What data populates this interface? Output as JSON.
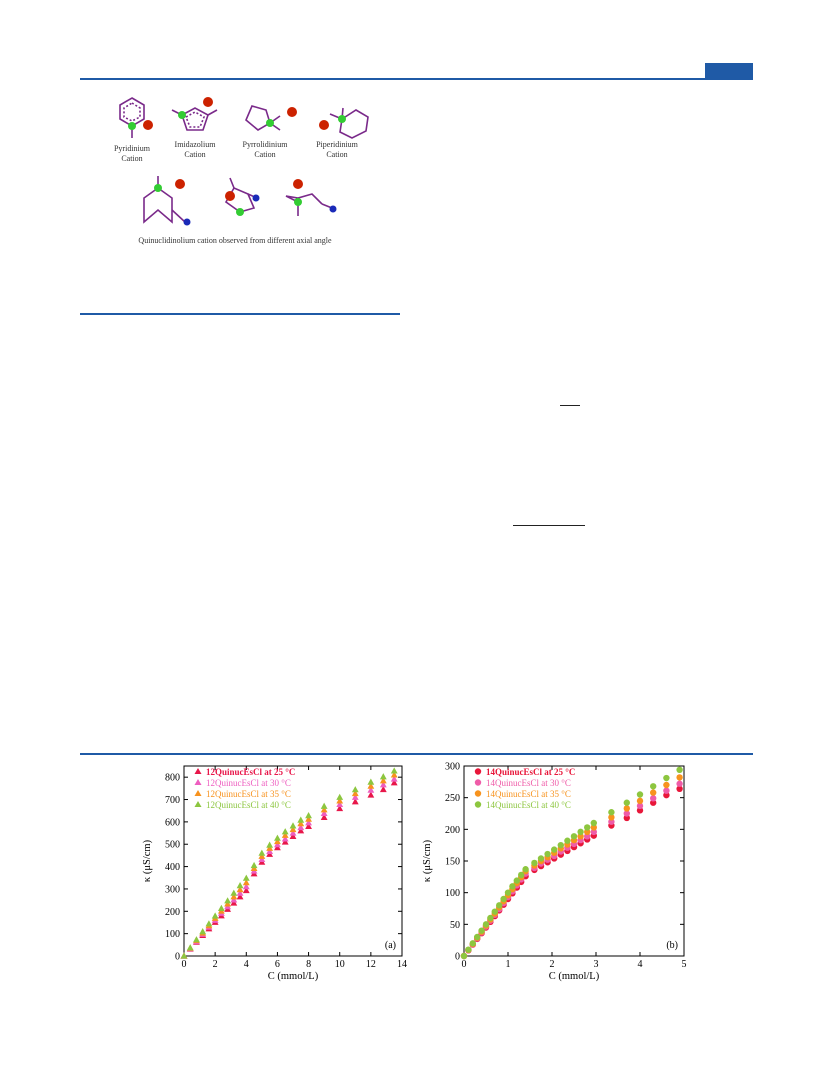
{
  "structures": {
    "labels": [
      {
        "text": "Pyridinium"
      },
      {
        "text": "Cation"
      },
      {
        "text": "Imidazolium"
      },
      {
        "text": "Cation"
      },
      {
        "text": "Pyrrolidinium"
      },
      {
        "text": "Cation"
      },
      {
        "text": "Piperidinium"
      },
      {
        "text": "Cation"
      }
    ],
    "caption": "Quinuclidinolium cation observed from different axial angle",
    "colors": {
      "bond": "#7a2a8a",
      "nitrogen": "#33cc33",
      "chloride": "#cc2200",
      "oxygen": "#1a2ab8"
    }
  },
  "chart_data": [
    {
      "type": "scatter",
      "panel_label": "(a)",
      "xlabel": "C (mmol/L)",
      "ylabel": "κ (μS/cm)",
      "xlim": [
        0,
        14
      ],
      "ylim": [
        0,
        850
      ],
      "xticks": [
        0,
        2,
        4,
        6,
        8,
        10,
        12,
        14
      ],
      "yticks": [
        0,
        100,
        200,
        300,
        400,
        500,
        600,
        700,
        800
      ],
      "marker": "triangle",
      "legend_position": "top-left",
      "series": [
        {
          "name": "12QuinucEsCl at 25 °C",
          "color": "#e8174a",
          "x": [
            0,
            0.4,
            0.8,
            1.2,
            1.6,
            2.0,
            2.4,
            2.8,
            3.2,
            3.6,
            4.0,
            4.5,
            5.0,
            5.5,
            6.0,
            6.5,
            7.0,
            7.5,
            8.0,
            9.0,
            10.0,
            11.0,
            12.0,
            12.8,
            13.5
          ],
          "y": [
            0,
            31,
            62,
            92,
            122,
            151,
            180,
            209,
            237,
            265,
            293,
            368,
            420,
            455,
            485,
            510,
            535,
            560,
            580,
            620,
            660,
            690,
            720,
            745,
            775
          ]
        },
        {
          "name": "12QuinucEsCl at 30 °C",
          "color": "#ee5ec0",
          "x": [
            0,
            0.4,
            0.8,
            1.2,
            1.6,
            2.0,
            2.4,
            2.8,
            3.2,
            3.6,
            4.0,
            4.5,
            5.0,
            5.5,
            6.0,
            6.5,
            7.0,
            7.5,
            8.0,
            9.0,
            10.0,
            11.0,
            12.0,
            12.8,
            13.5
          ],
          "y": [
            0,
            33,
            65,
            97,
            129,
            160,
            191,
            221,
            251,
            281,
            310,
            380,
            432,
            468,
            498,
            524,
            550,
            575,
            596,
            638,
            678,
            710,
            742,
            766,
            792
          ]
        },
        {
          "name": "12QuinucEsCl at 35 °C",
          "color": "#f7921e",
          "x": [
            0,
            0.4,
            0.8,
            1.2,
            1.6,
            2.0,
            2.4,
            2.8,
            3.2,
            3.6,
            4.0,
            4.5,
            5.0,
            5.5,
            6.0,
            6.5,
            7.0,
            7.5,
            8.0,
            9.0,
            10.0,
            11.0,
            12.0,
            12.8,
            13.5
          ],
          "y": [
            0,
            35,
            69,
            103,
            136,
            169,
            201,
            233,
            265,
            297,
            328,
            392,
            446,
            482,
            512,
            540,
            566,
            592,
            612,
            654,
            694,
            727,
            760,
            784,
            810
          ]
        },
        {
          "name": "12QuinucEsCl at 40 °C",
          "color": "#8cc63f",
          "x": [
            0,
            0.4,
            0.8,
            1.2,
            1.6,
            2.0,
            2.4,
            2.8,
            3.2,
            3.6,
            4.0,
            4.5,
            5.0,
            5.5,
            6.0,
            6.5,
            7.0,
            7.5,
            8.0,
            9.0,
            10.0,
            11.0,
            12.0,
            12.8,
            13.5
          ],
          "y": [
            0,
            37,
            73,
            109,
            144,
            179,
            213,
            247,
            281,
            315,
            348,
            405,
            460,
            496,
            527,
            556,
            582,
            608,
            628,
            670,
            710,
            744,
            778,
            802,
            828
          ]
        }
      ]
    },
    {
      "type": "scatter",
      "panel_label": "(b)",
      "xlabel": "C (mmol/L)",
      "ylabel": "κ (μS/cm)",
      "xlim": [
        0,
        5
      ],
      "ylim": [
        0,
        300
      ],
      "xticks": [
        0,
        1,
        2,
        3,
        4,
        5
      ],
      "yticks": [
        0,
        50,
        100,
        150,
        200,
        250,
        300
      ],
      "marker": "circle",
      "legend_position": "top-left",
      "series": [
        {
          "name": "14QuinucEsCl at 25 °C",
          "color": "#e8173a",
          "x": [
            0,
            0.1,
            0.2,
            0.3,
            0.4,
            0.5,
            0.6,
            0.7,
            0.8,
            0.9,
            1.0,
            1.1,
            1.2,
            1.3,
            1.4,
            1.6,
            1.75,
            1.9,
            2.05,
            2.2,
            2.35,
            2.5,
            2.65,
            2.8,
            2.95,
            3.35,
            3.7,
            4.0,
            4.3,
            4.6,
            4.9
          ],
          "y": [
            0,
            9,
            18,
            27,
            36,
            45,
            54,
            63,
            72,
            81,
            90,
            99,
            108,
            117,
            126,
            136,
            142,
            148,
            154,
            160,
            166,
            172,
            178,
            184,
            190,
            206,
            218,
            230,
            242,
            254,
            264
          ]
        },
        {
          "name": "14QuinucEsCl at 30 °C",
          "color": "#ef5ca8",
          "x": [
            0,
            0.1,
            0.2,
            0.3,
            0.4,
            0.5,
            0.6,
            0.7,
            0.8,
            0.9,
            1.0,
            1.1,
            1.2,
            1.3,
            1.4,
            1.6,
            1.75,
            1.9,
            2.05,
            2.2,
            2.35,
            2.5,
            2.65,
            2.8,
            2.95,
            3.35,
            3.7,
            4.0,
            4.3,
            4.6,
            4.9
          ],
          "y": [
            0,
            9.3,
            18.6,
            27.9,
            37.2,
            46.5,
            55.8,
            65,
            74,
            83.5,
            93,
            102,
            111.5,
            121,
            130,
            139,
            146,
            152,
            158,
            165,
            171,
            177,
            183,
            189,
            196,
            212,
            225,
            237,
            249,
            261,
            272
          ]
        },
        {
          "name": "14QuinucEsCl at 35 °C",
          "color": "#f7931e",
          "x": [
            0,
            0.1,
            0.2,
            0.3,
            0.4,
            0.5,
            0.6,
            0.7,
            0.8,
            0.9,
            1.0,
            1.1,
            1.2,
            1.3,
            1.4,
            1.6,
            1.75,
            1.9,
            2.05,
            2.2,
            2.35,
            2.5,
            2.65,
            2.8,
            2.95,
            3.35,
            3.7,
            4.0,
            4.3,
            4.6,
            4.9
          ],
          "y": [
            0,
            9.6,
            19.2,
            28.8,
            38.4,
            48,
            57.6,
            67,
            76.8,
            86.4,
            96,
            105.5,
            115,
            124.5,
            134,
            143,
            150,
            156,
            163,
            170,
            176,
            183,
            189,
            196,
            203,
            219,
            233,
            245,
            258,
            270,
            282
          ]
        },
        {
          "name": "14QuinucEsCl at 40 °C",
          "color": "#8dc63f",
          "x": [
            0,
            0.1,
            0.2,
            0.3,
            0.4,
            0.5,
            0.6,
            0.7,
            0.8,
            0.9,
            1.0,
            1.1,
            1.2,
            1.3,
            1.4,
            1.6,
            1.75,
            1.9,
            2.05,
            2.2,
            2.35,
            2.5,
            2.65,
            2.8,
            2.95,
            3.35,
            3.7,
            4.0,
            4.3,
            4.6,
            4.9
          ],
          "y": [
            0,
            10,
            20,
            30,
            40,
            50,
            60,
            70,
            80,
            90,
            100,
            110,
            119,
            128,
            137,
            147,
            154,
            161,
            168,
            175,
            182,
            189,
            196,
            203,
            210,
            227,
            242,
            255,
            268,
            281,
            294
          ]
        }
      ]
    }
  ]
}
